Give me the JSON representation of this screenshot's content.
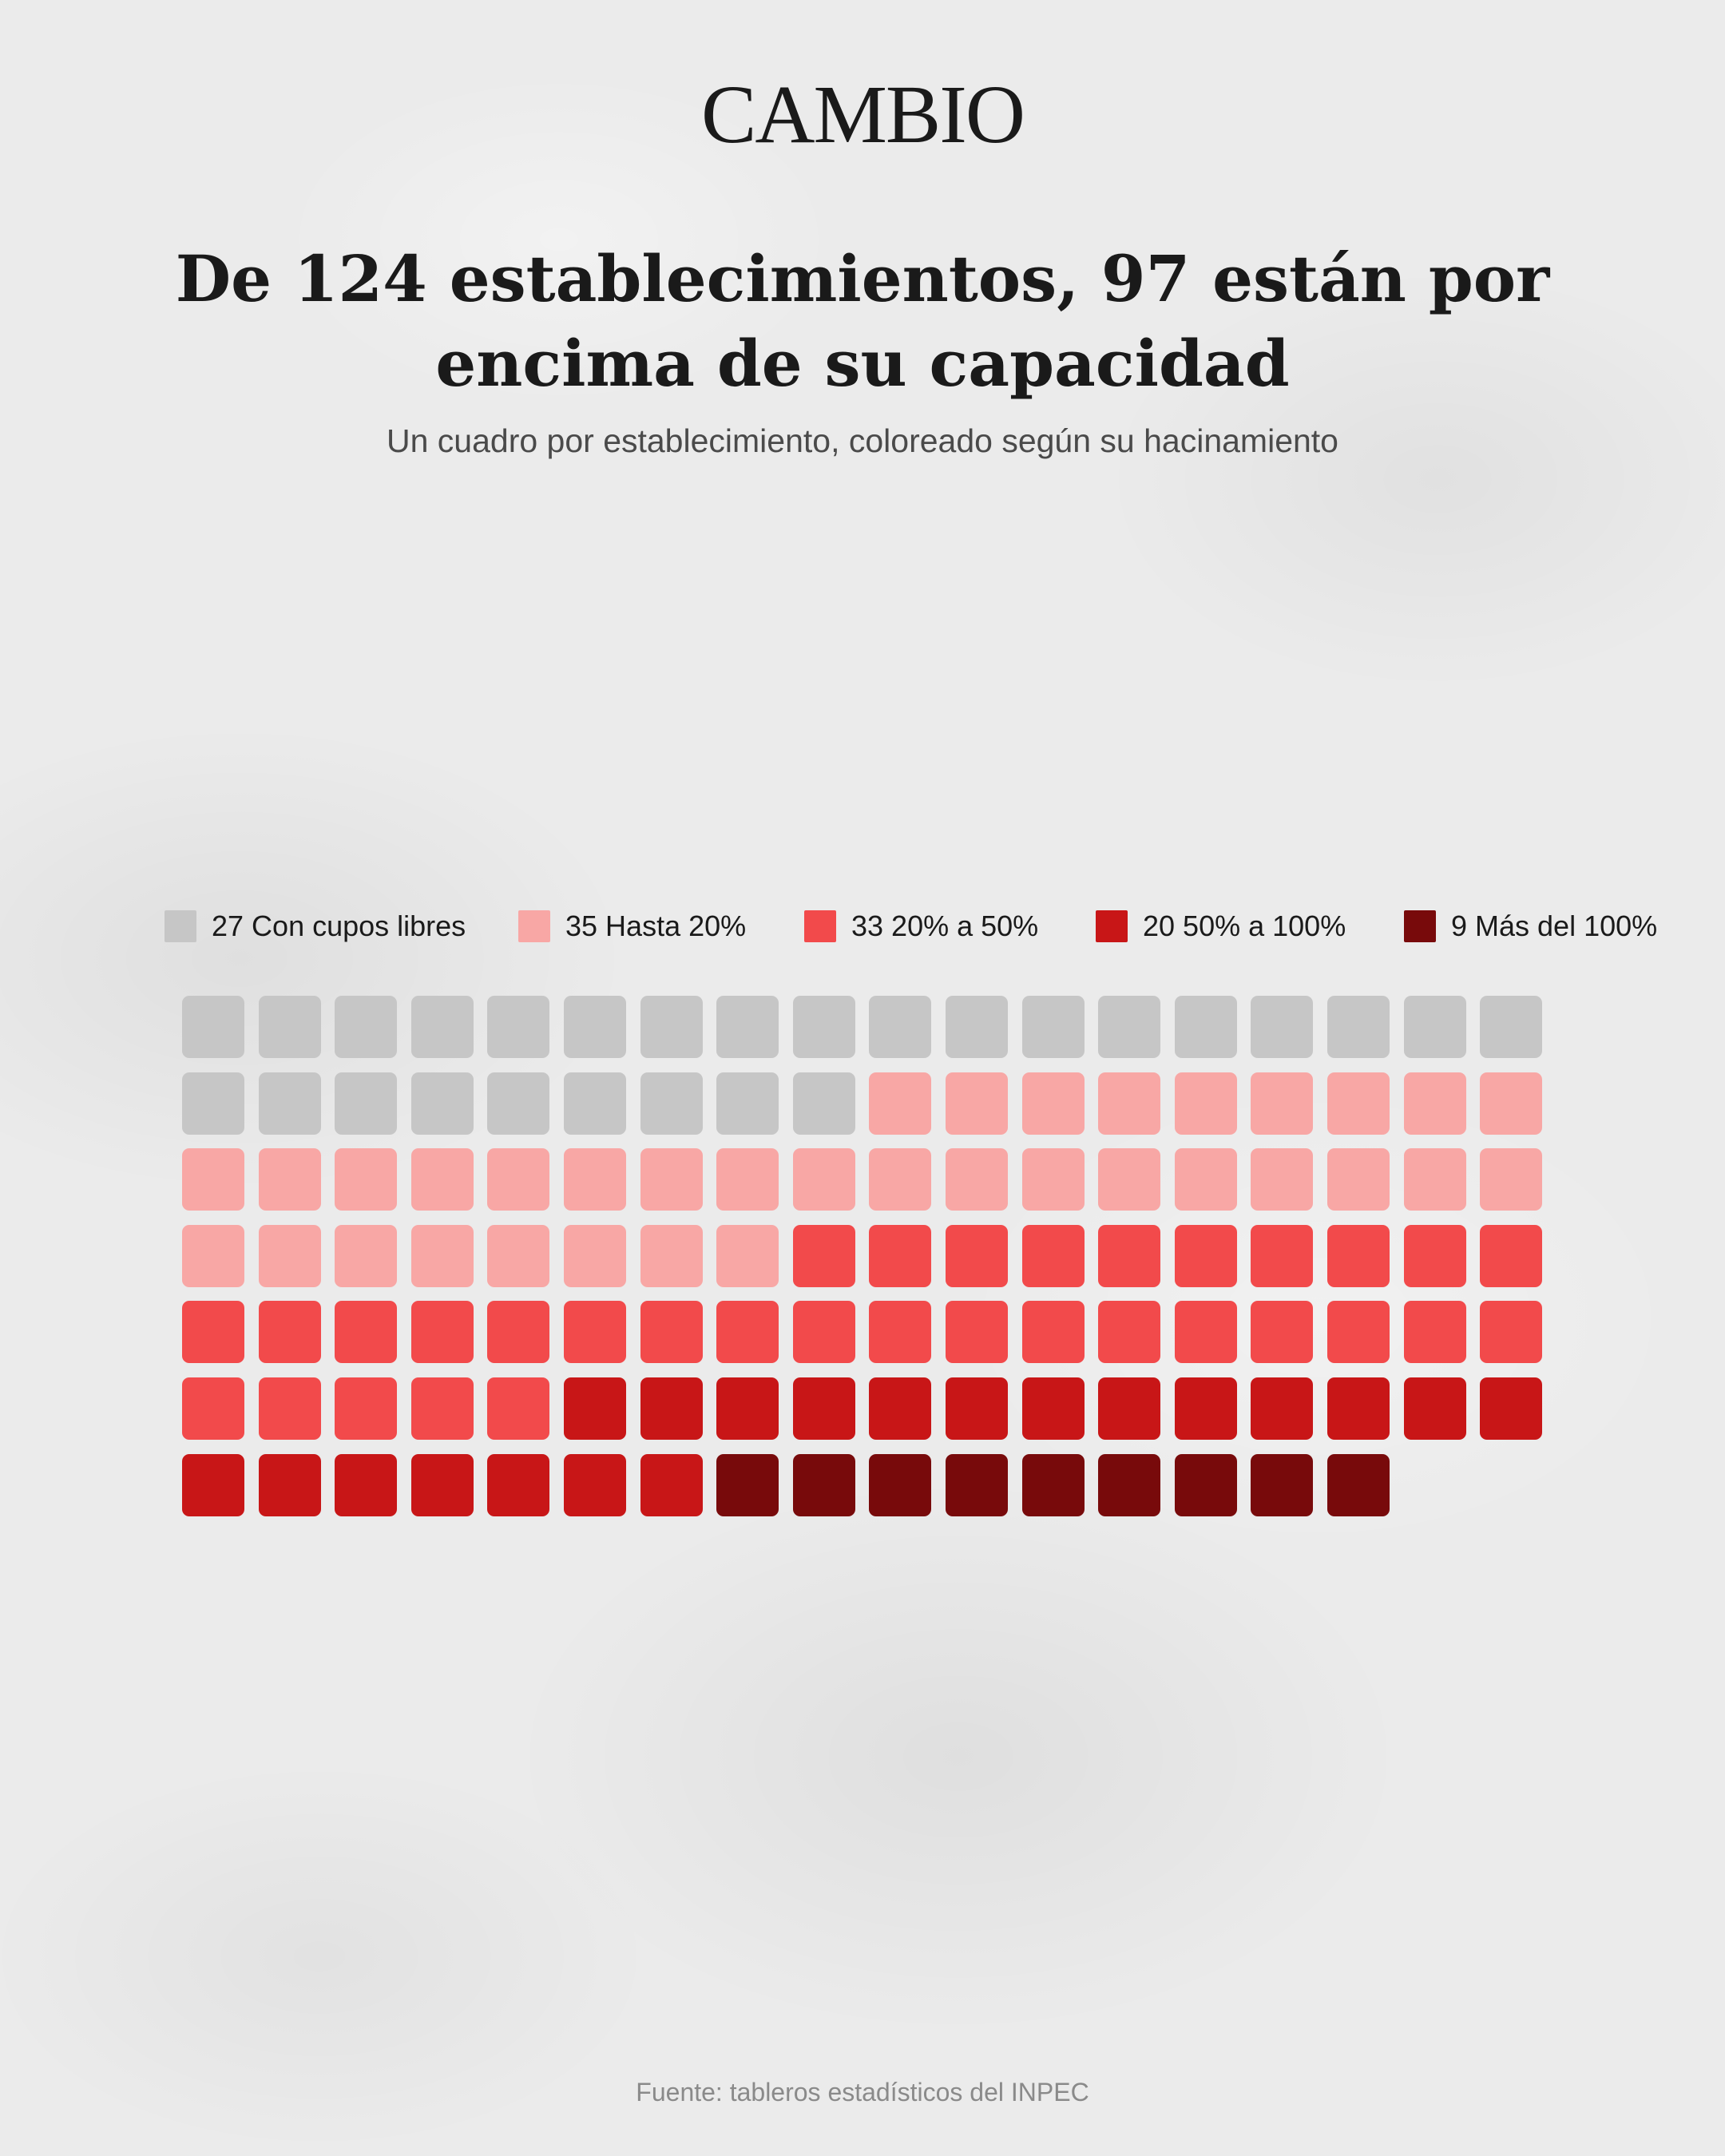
{
  "brand": "CAMBIO",
  "title": "De 124 establecimientos, 97 están por encima de su capacidad",
  "subtitle": "Un cuadro por establecimiento, coloreado según su hacinamiento",
  "source": "Fuente: tableros estadísticos del INPEC",
  "chart_data": {
    "type": "waffle",
    "title": "De 124 establecimientos, 97 están por encima de su capacidad",
    "subtitle": "Un cuadro por establecimiento, coloreado según su hacinamiento",
    "total": 124,
    "columns": 18,
    "categories": [
      {
        "label": "27 Con cupos libres",
        "name": "Con cupos libres",
        "count": 27,
        "color": "#c6c6c6"
      },
      {
        "label": "35 Hasta 20%",
        "name": "Hasta 20%",
        "count": 35,
        "color": "#f8a7a5"
      },
      {
        "label": "33 20% a 50%",
        "name": "20% a 50%",
        "count": 33,
        "color": "#f24a4b"
      },
      {
        "label": "20 50% a 100%",
        "name": "50% a 100%",
        "count": 20,
        "color": "#c81617"
      },
      {
        "label": "9 Más del 100%",
        "name": "Más del 100%",
        "count": 9,
        "color": "#780a0b"
      }
    ],
    "legend_position": "top"
  }
}
